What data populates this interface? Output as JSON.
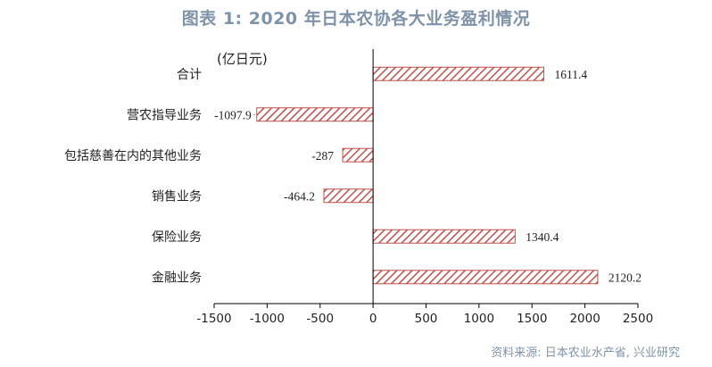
{
  "title": "图表 1:  2020 年日本农协各大业务盈利情况",
  "source": "资料来源: 日本农业水产省, 兴业研究",
  "chart_data": {
    "type": "bar",
    "orientation": "horizontal",
    "unit": "(亿日元)",
    "categories": [
      "合计",
      "营农指导业务",
      "包括慈善在内的其他业务",
      "销售业务",
      "保险业务",
      "金融业务"
    ],
    "values": [
      1611.4,
      -1097.9,
      -287,
      -464.2,
      1340.4,
      2120.2
    ],
    "value_labels": [
      "1611.4",
      "-1097.9",
      "-287",
      "-464.2",
      "1340.4",
      "2120.2"
    ],
    "xlim": [
      -1500,
      2500
    ],
    "xticks": [
      -1500,
      -1000,
      -500,
      0,
      500,
      1000,
      1500,
      2000,
      2500
    ],
    "xtick_labels": [
      "-1500",
      "-1000",
      "-500",
      "0",
      "500",
      "1000",
      "1500",
      "2000",
      "2500"
    ],
    "bar_color": "#c0504d",
    "bar_fill": "diagonal-hatch",
    "grid": false,
    "legend": "none"
  }
}
